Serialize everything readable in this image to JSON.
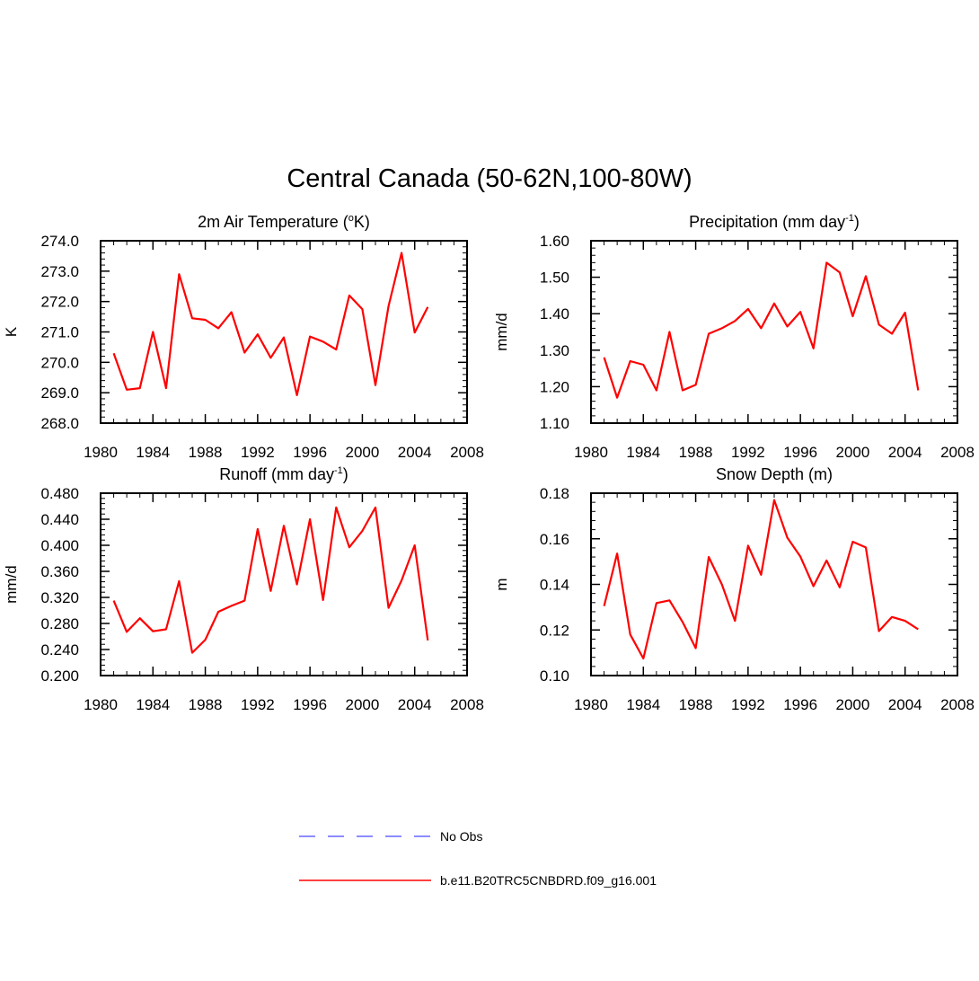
{
  "title": "Central Canada (50-62N,100-80W)",
  "colors": {
    "model": "#ff0000",
    "obs": "#6666ff",
    "axis": "#000000"
  },
  "legend": [
    {
      "label": "No Obs",
      "style": "dashed",
      "color": "#6666ff"
    },
    {
      "label": "b.e11.B20TRC5CNBDRD.f09_g16.001",
      "style": "solid",
      "color": "#ff0000"
    }
  ],
  "chart_data": [
    {
      "type": "line",
      "title": "2m Air Temperature (",
      "title_sup": "o",
      "title_tail": "K)",
      "xlabel": "",
      "ylabel": "K",
      "xlim": [
        1980,
        2008
      ],
      "ylim": [
        268.0,
        274.0
      ],
      "xticks": [
        1980,
        1984,
        1988,
        1992,
        1996,
        2000,
        2004,
        2008
      ],
      "yticks": [
        "268.0",
        "269.0",
        "270.0",
        "271.0",
        "272.0",
        "273.0",
        "274.0"
      ],
      "x": [
        1981,
        1982,
        1983,
        1984,
        1985,
        1986,
        1987,
        1988,
        1989,
        1990,
        1991,
        1992,
        1993,
        1994,
        1995,
        1996,
        1997,
        1998,
        1999,
        2000,
        2001,
        2002,
        2003,
        2004,
        2005
      ],
      "series": [
        {
          "name": "b.e11.B20TRC5CNBDRD.f09_g16.001",
          "values": [
            270.3,
            269.1,
            269.15,
            271.0,
            269.15,
            272.9,
            271.45,
            271.4,
            271.12,
            271.65,
            270.32,
            270.92,
            270.15,
            270.82,
            268.92,
            270.85,
            270.68,
            270.42,
            272.2,
            271.75,
            269.25,
            271.85,
            273.6,
            270.98,
            271.82
          ]
        }
      ]
    },
    {
      "type": "line",
      "title": "Precipitation (mm day",
      "title_sup": "-1",
      "title_tail": ")",
      "xlabel": "",
      "ylabel": "mm/d",
      "xlim": [
        1980,
        2008
      ],
      "ylim": [
        1.1,
        1.6
      ],
      "xticks": [
        1980,
        1984,
        1988,
        1992,
        1996,
        2000,
        2004,
        2008
      ],
      "yticks": [
        "1.10",
        "1.20",
        "1.30",
        "1.40",
        "1.50",
        "1.60"
      ],
      "x": [
        1981,
        1982,
        1983,
        1984,
        1985,
        1986,
        1987,
        1988,
        1989,
        1990,
        1991,
        1992,
        1993,
        1994,
        1995,
        1996,
        1997,
        1998,
        1999,
        2000,
        2001,
        2002,
        2003,
        2004,
        2005
      ],
      "series": [
        {
          "name": "b.e11.B20TRC5CNBDRD.f09_g16.001",
          "values": [
            1.28,
            1.17,
            1.27,
            1.26,
            1.19,
            1.35,
            1.19,
            1.205,
            1.345,
            1.36,
            1.38,
            1.413,
            1.36,
            1.428,
            1.365,
            1.405,
            1.305,
            1.54,
            1.513,
            1.393,
            1.503,
            1.37,
            1.345,
            1.403,
            1.19
          ]
        }
      ]
    },
    {
      "type": "line",
      "title": "Runoff (mm day",
      "title_sup": "-1",
      "title_tail": ")",
      "xlabel": "",
      "ylabel": "mm/d",
      "xlim": [
        1980,
        2008
      ],
      "ylim": [
        0.2,
        0.48
      ],
      "xticks": [
        1980,
        1984,
        1988,
        1992,
        1996,
        2000,
        2004,
        2008
      ],
      "yticks": [
        "0.200",
        "0.240",
        "0.280",
        "0.320",
        "0.360",
        "0.400",
        "0.440",
        "0.480"
      ],
      "x": [
        1981,
        1982,
        1983,
        1984,
        1985,
        1986,
        1987,
        1988,
        1989,
        1990,
        1991,
        1992,
        1993,
        1994,
        1995,
        1996,
        1997,
        1998,
        1999,
        2000,
        2001,
        2002,
        2003,
        2004,
        2005
      ],
      "series": [
        {
          "name": "b.e11.B20TRC5CNBDRD.f09_g16.001",
          "values": [
            0.315,
            0.267,
            0.288,
            0.268,
            0.271,
            0.345,
            0.235,
            0.255,
            0.298,
            0.307,
            0.315,
            0.425,
            0.33,
            0.43,
            0.34,
            0.44,
            0.316,
            0.458,
            0.397,
            0.422,
            0.458,
            0.304,
            0.346,
            0.4,
            0.254
          ]
        }
      ]
    },
    {
      "type": "line",
      "title": "Snow Depth (m)",
      "title_sup": "",
      "title_tail": "",
      "xlabel": "",
      "ylabel": "m",
      "xlim": [
        1980,
        2008
      ],
      "ylim": [
        0.1,
        0.18
      ],
      "xticks": [
        1980,
        1984,
        1988,
        1992,
        1996,
        2000,
        2004,
        2008
      ],
      "yticks": [
        "0.10",
        "0.12",
        "0.14",
        "0.16",
        "0.18"
      ],
      "x": [
        1981,
        1982,
        1983,
        1984,
        1985,
        1986,
        1987,
        1988,
        1989,
        1990,
        1991,
        1992,
        1993,
        1994,
        1995,
        1996,
        1997,
        1998,
        1999,
        2000,
        2001,
        2002,
        2003,
        2004,
        2005
      ],
      "series": [
        {
          "name": "b.e11.B20TRC5CNBDRD.f09_g16.001",
          "values": [
            0.1305,
            0.1535,
            0.118,
            0.1075,
            0.1318,
            0.133,
            0.1235,
            0.112,
            0.152,
            0.14,
            0.124,
            0.157,
            0.1442,
            0.177,
            0.1605,
            0.1522,
            0.1392,
            0.1505,
            0.1387,
            0.1587,
            0.1562,
            0.1195,
            0.1257,
            0.124,
            0.1203
          ]
        }
      ]
    }
  ]
}
